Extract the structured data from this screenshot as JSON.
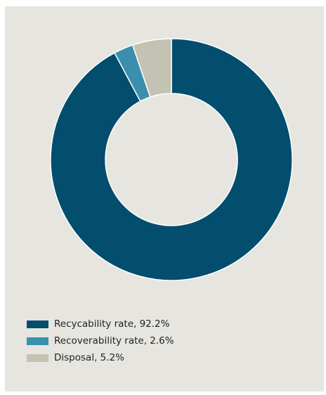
{
  "chart_data": {
    "type": "pie",
    "style": "donut",
    "series": [
      {
        "label": "Recycability rate, 92.2%",
        "value": 92.2,
        "color": "#034d6e"
      },
      {
        "label": "Recoverability rate, 2.6%",
        "value": 2.6,
        "color": "#3b8fad"
      },
      {
        "label": "Disposal, 5.2%",
        "value": 5.2,
        "color": "#c4c3b3"
      }
    ],
    "legend_position": "bottom-left",
    "start_angle_deg": 0,
    "direction": "clockwise"
  }
}
